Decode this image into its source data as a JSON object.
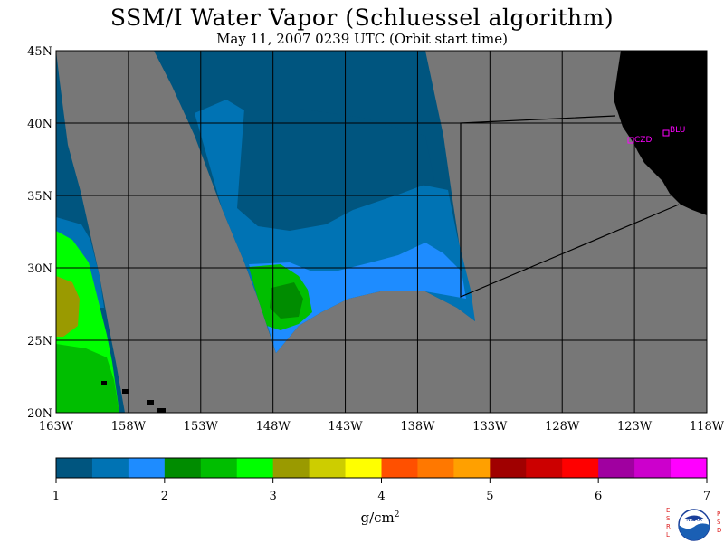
{
  "title": "SSM/I Water Vapor (Schluessel algorithm)",
  "subtitle": "May 11, 2007  0239 UTC  (Orbit start time)",
  "map": {
    "lon_labels": [
      "163W",
      "158W",
      "153W",
      "148W",
      "143W",
      "138W",
      "133W",
      "128W",
      "123W",
      "118W"
    ],
    "lat_labels": [
      "45N",
      "40N",
      "35N",
      "30N",
      "25N",
      "20N"
    ],
    "sites": [
      {
        "id": "CZD",
        "label": "CZD"
      },
      {
        "id": "BLU",
        "label": "BLU"
      }
    ],
    "colors": {
      "no_data": "#777777",
      "land": "#000000",
      "grid": "#000000",
      "sites": "#ff00ff"
    }
  },
  "colorbar": {
    "colors": [
      "#00557f",
      "#0073b4",
      "#1e8cff",
      "#008c00",
      "#00be00",
      "#00ff00",
      "#9a9a00",
      "#cdcd00",
      "#ffff00",
      "#ff5000",
      "#ff7800",
      "#ffa000",
      "#a00000",
      "#cc0000",
      "#ff0000",
      "#a000a0",
      "#cc00cc",
      "#ff00ff"
    ],
    "tick_labels": [
      "1",
      "2",
      "3",
      "4",
      "5",
      "6",
      "7"
    ],
    "units": "g/cm",
    "units_exp": "2"
  },
  "logo": {
    "left_text": "ESRL",
    "right_text": "PSD",
    "center_text": "NOAA"
  }
}
